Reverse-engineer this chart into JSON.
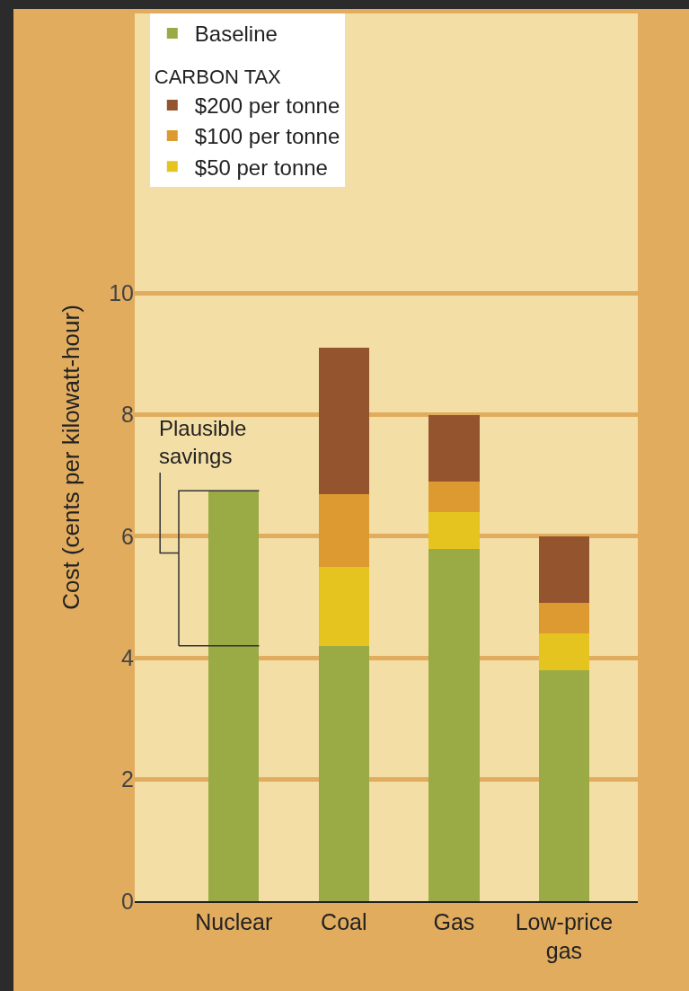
{
  "chart_data": {
    "type": "bar",
    "stacked": true,
    "ylabel": "Cost (cents per kilowatt-hour)",
    "legend_title": "CARBON TAX",
    "categories": [
      "Nuclear",
      "Coal",
      "Gas",
      "Low-price gas"
    ],
    "series": [
      {
        "name": "Baseline",
        "color": "#9aab45",
        "values": [
          6.75,
          4.2,
          5.8,
          3.8
        ]
      },
      {
        "name": "$50 per tonne",
        "color": "#e6c420",
        "values": [
          null,
          1.3,
          0.6,
          0.6
        ]
      },
      {
        "name": "$100 per tonne",
        "color": "#dc9a30",
        "values": [
          null,
          1.2,
          0.5,
          0.5
        ]
      },
      {
        "name": "$200 per tonne",
        "color": "#94552e",
        "values": [
          null,
          2.4,
          1.1,
          1.1
        ]
      }
    ],
    "ylim": [
      0,
      14.6
    ],
    "yticks": [
      0,
      2,
      4,
      6,
      8,
      10
    ],
    "grid": "y",
    "legend": "top left",
    "ref_lines": [
      {
        "axis": "y",
        "value": 4.2,
        "color": "#333333"
      }
    ],
    "annotations": [
      {
        "text": "Plausible\nsavings",
        "x": "Nuclear",
        "y": 6.75
      }
    ]
  }
}
